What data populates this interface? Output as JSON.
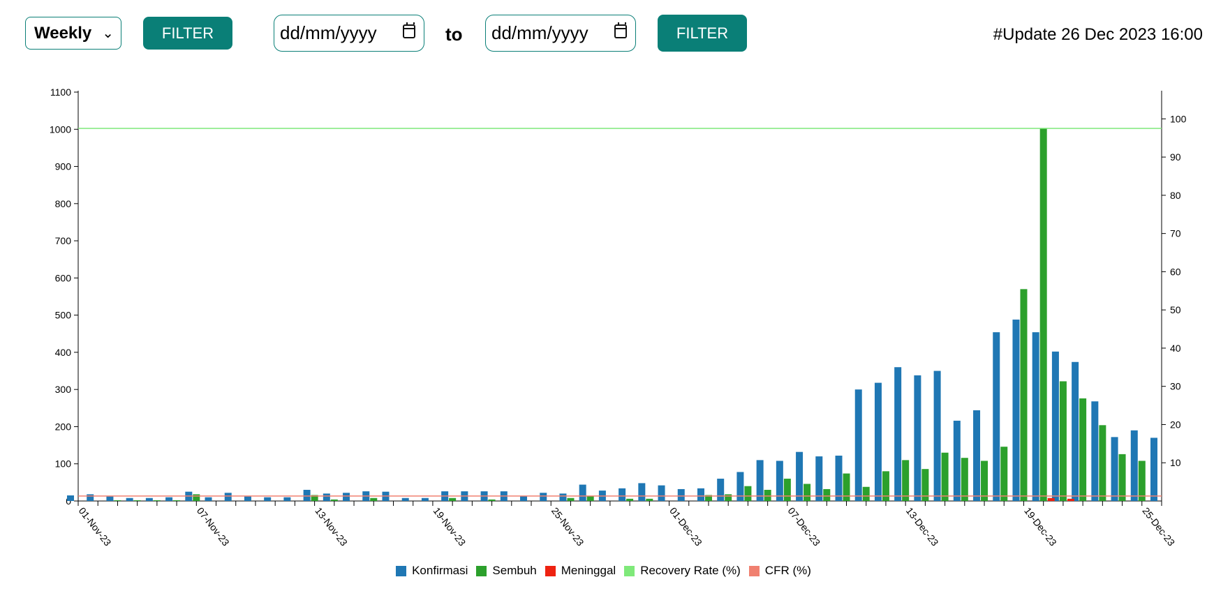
{
  "toolbar": {
    "period_select": "Weekly",
    "filter_label": "FILTER",
    "date_from_placeholder": "dd/mm/yyyy",
    "to_label": "to",
    "date_to_placeholder": "dd/mm/yyyy",
    "filter2_label": "FILTER",
    "update_text": "#Update 26 Dec 2023 16:00"
  },
  "chart_data": {
    "type": "bar",
    "title": "",
    "xlabel": "",
    "ylabel": "",
    "ylim": [
      0,
      1100
    ],
    "y2lim": [
      0,
      107
    ],
    "yticks": [
      0,
      100,
      200,
      300,
      400,
      500,
      600,
      700,
      800,
      900,
      1000,
      1100
    ],
    "y2ticks": [
      10,
      20,
      30,
      40,
      50,
      60,
      70,
      80,
      90,
      100
    ],
    "x_tick_labels": [
      "01-Nov-23",
      "07-Nov-23",
      "13-Nov-23",
      "19-Nov-23",
      "25-Nov-23",
      "01-Dec-23",
      "07-Dec-23",
      "13-Dec-23",
      "19-Dec-23",
      "25-Dec-23"
    ],
    "grid": false,
    "legend_position": "bottom",
    "categories": [
      "01-Nov-23",
      "02-Nov-23",
      "03-Nov-23",
      "04-Nov-23",
      "05-Nov-23",
      "06-Nov-23",
      "07-Nov-23",
      "08-Nov-23",
      "09-Nov-23",
      "10-Nov-23",
      "11-Nov-23",
      "12-Nov-23",
      "13-Nov-23",
      "14-Nov-23",
      "15-Nov-23",
      "16-Nov-23",
      "17-Nov-23",
      "18-Nov-23",
      "19-Nov-23",
      "20-Nov-23",
      "21-Nov-23",
      "22-Nov-23",
      "23-Nov-23",
      "24-Nov-23",
      "25-Nov-23",
      "26-Nov-23",
      "27-Nov-23",
      "28-Nov-23",
      "29-Nov-23",
      "30-Nov-23",
      "01-Dec-23",
      "02-Dec-23",
      "03-Dec-23",
      "04-Dec-23",
      "05-Dec-23",
      "06-Dec-23",
      "07-Dec-23",
      "08-Dec-23",
      "09-Dec-23",
      "10-Dec-23",
      "11-Dec-23",
      "12-Dec-23",
      "13-Dec-23",
      "14-Dec-23",
      "15-Dec-23",
      "16-Dec-23",
      "17-Dec-23",
      "18-Dec-23",
      "19-Dec-23",
      "20-Dec-23",
      "21-Dec-23",
      "22-Dec-23",
      "23-Dec-23",
      "24-Dec-23",
      "25-Dec-23",
      "26-Dec-23"
    ],
    "series": [
      {
        "name": "Konfirmasi",
        "axis": "left",
        "color": "#1f77b4",
        "values": [
          15,
          18,
          12,
          8,
          8,
          10,
          25,
          10,
          22,
          12,
          10,
          10,
          30,
          20,
          22,
          26,
          25,
          8,
          8,
          26,
          26,
          26,
          26,
          14,
          22,
          20,
          44,
          28,
          34,
          48,
          42,
          32,
          34,
          60,
          78,
          110,
          108,
          132,
          120,
          122,
          300,
          318,
          360,
          338,
          350,
          216,
          244,
          454,
          488,
          454,
          402,
          374,
          268,
          172,
          190,
          170
        ]
      },
      {
        "name": "Sembuh",
        "axis": "left",
        "color": "#2ca02c",
        "values": [
          0,
          0,
          2,
          2,
          2,
          2,
          18,
          0,
          0,
          0,
          0,
          0,
          16,
          4,
          0,
          8,
          0,
          0,
          0,
          8,
          0,
          4,
          0,
          0,
          0,
          8,
          14,
          0,
          6,
          6,
          0,
          0,
          16,
          18,
          40,
          30,
          60,
          46,
          32,
          74,
          38,
          80,
          110,
          86,
          130,
          116,
          108,
          146,
          570,
          1002,
          322,
          276,
          204,
          126,
          108,
          0
        ]
      },
      {
        "name": "Meninggal",
        "axis": "left",
        "color": "#ee2211",
        "values": [
          0,
          0,
          0,
          0,
          0,
          0,
          0,
          0,
          0,
          0,
          0,
          0,
          0,
          0,
          0,
          0,
          0,
          0,
          0,
          0,
          0,
          0,
          0,
          0,
          0,
          0,
          0,
          0,
          0,
          0,
          0,
          0,
          0,
          0,
          0,
          0,
          0,
          0,
          0,
          0,
          0,
          0,
          0,
          0,
          0,
          0,
          0,
          0,
          0,
          8,
          6,
          0,
          0,
          0,
          0,
          0
        ]
      },
      {
        "name": "Recovery Rate (%)",
        "axis": "right",
        "color": "#7fe97a",
        "type": "line",
        "value_constant": 97.5
      },
      {
        "name": "CFR (%)",
        "axis": "right",
        "color": "#f08070",
        "type": "line",
        "value_constant": 1.3
      }
    ]
  }
}
